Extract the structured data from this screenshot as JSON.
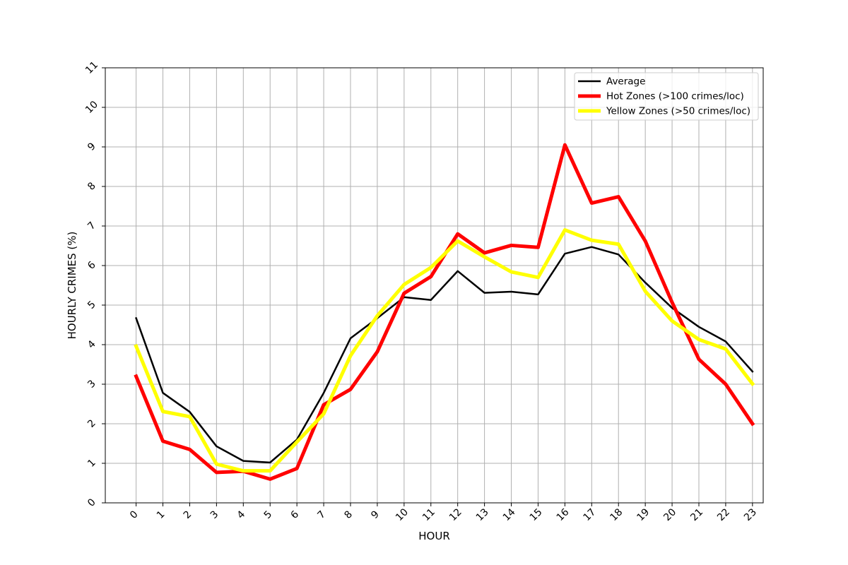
{
  "chart_data": {
    "type": "line",
    "title": "",
    "xlabel": "HOUR",
    "ylabel": "HOURLY CRIMES (%)",
    "categories": [
      "0",
      "1",
      "2",
      "3",
      "4",
      "5",
      "6",
      "7",
      "8",
      "9",
      "10",
      "11",
      "12",
      "13",
      "14",
      "15",
      "16",
      "17",
      "18",
      "19",
      "20",
      "21",
      "22",
      "23"
    ],
    "x": [
      0,
      1,
      2,
      3,
      4,
      5,
      6,
      7,
      8,
      9,
      10,
      11,
      12,
      13,
      14,
      15,
      16,
      17,
      18,
      19,
      20,
      21,
      22,
      23
    ],
    "xlim": [
      -1.15,
      23.4
    ],
    "ylim": [
      0,
      11
    ],
    "yticks": [
      0,
      1,
      2,
      3,
      4,
      5,
      6,
      7,
      8,
      9,
      10,
      11
    ],
    "grid": true,
    "legend_position": "top-right",
    "series": [
      {
        "name": "Average",
        "color": "#000000",
        "values": [
          4.67,
          2.78,
          2.3,
          1.43,
          1.06,
          1.02,
          1.6,
          2.78,
          4.16,
          4.67,
          5.2,
          5.13,
          5.86,
          5.31,
          5.34,
          5.27,
          6.3,
          6.47,
          6.28,
          5.57,
          4.93,
          4.45,
          4.08,
          3.32
        ]
      },
      {
        "name": "Hot Zones (>100 crimes/loc)",
        "color": "#ff0000",
        "values": [
          3.2,
          1.56,
          1.35,
          0.77,
          0.8,
          0.6,
          0.87,
          2.48,
          2.87,
          3.82,
          5.3,
          5.72,
          6.8,
          6.32,
          6.51,
          6.46,
          9.05,
          7.58,
          7.74,
          6.62,
          5.07,
          3.63,
          3.0,
          2.0
        ]
      },
      {
        "name": "Yellow Zones (>50 crimes/loc)",
        "color": "#ffff00",
        "values": [
          3.96,
          2.31,
          2.18,
          0.98,
          0.81,
          0.81,
          1.54,
          2.25,
          3.72,
          4.73,
          5.52,
          5.95,
          6.62,
          6.22,
          5.84,
          5.7,
          6.9,
          6.64,
          6.54,
          5.35,
          4.6,
          4.13,
          3.89,
          3.01
        ]
      }
    ]
  }
}
